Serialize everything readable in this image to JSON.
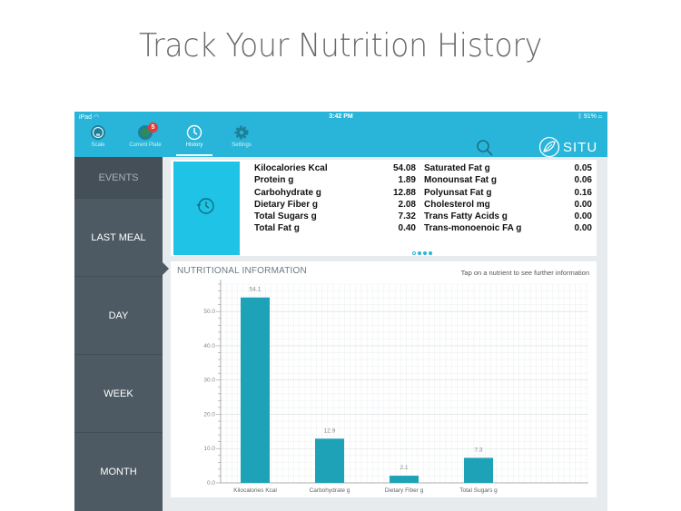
{
  "headline": "Track Your Nutrition History",
  "statusbar": {
    "carrier": "iPad",
    "time": "3:42 PM",
    "battery": "91%"
  },
  "nav": {
    "items": [
      {
        "label": "Scale",
        "icon": "scale-icon"
      },
      {
        "label": "Current Plate",
        "icon": "plate-icon",
        "badge": "5"
      },
      {
        "label": "History",
        "icon": "clock-icon",
        "active": true
      },
      {
        "label": "Settings",
        "icon": "gear-icon"
      }
    ],
    "search_icon": "search-icon",
    "logo_text": "SITU"
  },
  "sidebar": {
    "items": [
      {
        "label": "EVENTS"
      },
      {
        "label": "LAST MEAL"
      },
      {
        "label": "DAY"
      },
      {
        "label": "WEEK"
      },
      {
        "label": "MONTH"
      }
    ]
  },
  "summary": {
    "left": [
      {
        "name": "Kilocalories Kcal",
        "value": "54.08"
      },
      {
        "name": "Protein g",
        "value": "1.89"
      },
      {
        "name": "Carbohydrate g",
        "value": "12.88"
      },
      {
        "name": "Dietary Fiber g",
        "value": "2.08"
      },
      {
        "name": "Total Sugars g",
        "value": "7.32"
      },
      {
        "name": "Total Fat g",
        "value": "0.40"
      }
    ],
    "right": [
      {
        "name": "Saturated Fat g",
        "value": "0.05"
      },
      {
        "name": "Monounsat Fat g",
        "value": "0.06"
      },
      {
        "name": "Polyunsat Fat g",
        "value": "0.16"
      },
      {
        "name": "Cholesterol mg",
        "value": "0.00"
      },
      {
        "name": "Trans Fatty Acids g",
        "value": "0.00"
      },
      {
        "name": "Trans-monoenoic FA g",
        "value": "0.00"
      }
    ],
    "page_indicator": {
      "pages": 4,
      "current": 0
    }
  },
  "chart": {
    "title": "NUTRITIONAL INFORMATION",
    "hint": "Tap on a nutrient to see further information"
  },
  "chart_data": {
    "type": "bar",
    "categories": [
      "Kilocalories Kcal",
      "Carbohydrate g",
      "Dietary Fiber g",
      "Total Sugars g"
    ],
    "values": [
      54.1,
      12.9,
      2.1,
      7.3
    ],
    "value_labels": [
      "54.1",
      "12.9",
      "2.1",
      "7.3"
    ],
    "yticks": [
      "0.0",
      "10.0",
      "20.0",
      "30.0",
      "40.0",
      "50.0"
    ],
    "ylim": [
      0,
      58
    ],
    "grid": true,
    "bar_color": "#1ea2b8"
  },
  "colors": {
    "accent": "#29b5d9",
    "tile": "#1ec3e6",
    "sidebar": "#4e5a63",
    "bar": "#1ea2b8"
  }
}
